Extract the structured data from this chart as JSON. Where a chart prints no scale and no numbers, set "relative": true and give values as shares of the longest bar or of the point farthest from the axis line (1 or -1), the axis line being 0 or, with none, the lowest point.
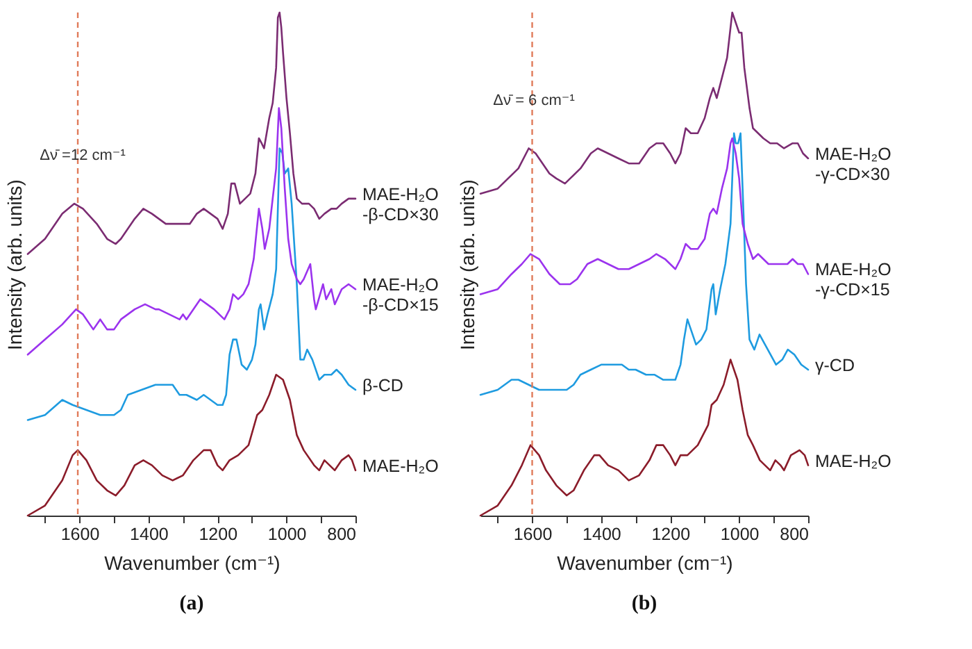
{
  "chart_data": [
    {
      "type": "line",
      "title": "(a)",
      "xlabel": "Wavenumber (cm⁻¹)",
      "ylabel": "Intensity (arb. units)",
      "relative": true,
      "legend": false,
      "grid": false,
      "tick_labels": "x",
      "xlim": [
        1750,
        800
      ],
      "xticks": [
        {
          "value": 1700,
          "label": null
        },
        1600,
        {
          "value": 1500,
          "label": null
        },
        1400,
        {
          "value": 1300,
          "label": null
        },
        1200,
        {
          "value": 1100,
          "label": null
        },
        1000,
        {
          "value": 900,
          "label": null
        },
        800
      ],
      "ref_lines": [
        {
          "axis": "x",
          "value": 1605,
          "color": "#e07b5a",
          "line_style": "dashed"
        }
      ],
      "annotations": [
        {
          "text": "Δν̄ =12 cm⁻¹",
          "x": 1591,
          "y": 0.69
        }
      ],
      "series": [
        {
          "name": "MAE-H₂O",
          "color": "#8b1c2a",
          "x": [
            1750,
            1700,
            1650,
            1620,
            1605,
            1580,
            1550,
            1520,
            1495,
            1470,
            1440,
            1415,
            1390,
            1360,
            1330,
            1300,
            1270,
            1240,
            1220,
            1200,
            1185,
            1165,
            1140,
            1110,
            1085,
            1070,
            1050,
            1030,
            1010,
            990,
            970,
            950,
            920,
            905,
            890,
            875,
            860,
            840,
            820,
            810,
            800
          ],
          "values": [
            0,
            0.02,
            0.07,
            0.12,
            0.13,
            0.11,
            0.07,
            0.05,
            0.04,
            0.06,
            0.1,
            0.11,
            0.1,
            0.08,
            0.07,
            0.08,
            0.11,
            0.13,
            0.13,
            0.1,
            0.09,
            0.11,
            0.12,
            0.14,
            0.2,
            0.21,
            0.24,
            0.28,
            0.27,
            0.23,
            0.16,
            0.13,
            0.1,
            0.09,
            0.11,
            0.1,
            0.09,
            0.11,
            0.12,
            0.11,
            0.09
          ]
        },
        {
          "name": "β-CD",
          "color": "#1e9be0",
          "x": [
            1750,
            1700,
            1650,
            1620,
            1580,
            1540,
            1500,
            1480,
            1460,
            1420,
            1380,
            1350,
            1330,
            1310,
            1290,
            1260,
            1240,
            1220,
            1200,
            1185,
            1175,
            1165,
            1155,
            1145,
            1130,
            1115,
            1100,
            1090,
            1080,
            1075,
            1065,
            1055,
            1040,
            1030,
            1020,
            1012,
            1005,
            995,
            985,
            970,
            960,
            950,
            940,
            925,
            905,
            890,
            870,
            855,
            840,
            820,
            800
          ],
          "values": [
            0.19,
            0.2,
            0.23,
            0.22,
            0.21,
            0.2,
            0.2,
            0.21,
            0.24,
            0.25,
            0.26,
            0.26,
            0.26,
            0.24,
            0.24,
            0.23,
            0.24,
            0.23,
            0.22,
            0.22,
            0.24,
            0.32,
            0.35,
            0.35,
            0.3,
            0.29,
            0.31,
            0.34,
            0.41,
            0.42,
            0.37,
            0.4,
            0.44,
            0.49,
            0.73,
            0.72,
            0.68,
            0.69,
            0.62,
            0.46,
            0.31,
            0.31,
            0.33,
            0.31,
            0.27,
            0.28,
            0.28,
            0.29,
            0.28,
            0.26,
            0.25
          ]
        },
        {
          "name": "MAE-H₂O\n-β-CD×15",
          "color": "#9b33ee",
          "x": [
            1750,
            1700,
            1650,
            1610,
            1590,
            1560,
            1540,
            1520,
            1500,
            1480,
            1460,
            1440,
            1410,
            1380,
            1370,
            1340,
            1310,
            1300,
            1290,
            1270,
            1250,
            1230,
            1210,
            1180,
            1165,
            1155,
            1140,
            1125,
            1110,
            1095,
            1080,
            1070,
            1063,
            1050,
            1040,
            1030,
            1022,
            1015,
            1005,
            995,
            985,
            970,
            960,
            950,
            931,
            920,
            915,
            894,
            885,
            870,
            860,
            840,
            820,
            800
          ],
          "values": [
            0.32,
            0.35,
            0.38,
            0.41,
            0.4,
            0.37,
            0.39,
            0.37,
            0.37,
            0.39,
            0.4,
            0.41,
            0.42,
            0.41,
            0.41,
            0.4,
            0.39,
            0.4,
            0.39,
            0.41,
            0.43,
            0.42,
            0.41,
            0.39,
            0.41,
            0.44,
            0.43,
            0.44,
            0.46,
            0.51,
            0.61,
            0.57,
            0.53,
            0.57,
            0.63,
            0.69,
            0.81,
            0.77,
            0.65,
            0.55,
            0.5,
            0.47,
            0.46,
            0.47,
            0.5,
            0.43,
            0.41,
            0.46,
            0.43,
            0.45,
            0.42,
            0.45,
            0.46,
            0.45
          ]
        },
        {
          "name": "MAE-H₂O\n-β-CD×30",
          "color": "#7b2c72",
          "x": [
            1750,
            1700,
            1650,
            1615,
            1590,
            1550,
            1520,
            1495,
            1480,
            1460,
            1440,
            1415,
            1390,
            1370,
            1350,
            1330,
            1310,
            1295,
            1280,
            1260,
            1240,
            1220,
            1200,
            1185,
            1170,
            1160,
            1150,
            1135,
            1120,
            1105,
            1090,
            1080,
            1072,
            1065,
            1050,
            1040,
            1030,
            1025,
            1020,
            1015,
            1010,
            1000,
            990,
            980,
            970,
            955,
            945,
            935,
            920,
            905,
            890,
            870,
            855,
            840,
            820,
            800
          ],
          "values": [
            0.52,
            0.55,
            0.6,
            0.62,
            0.61,
            0.58,
            0.55,
            0.54,
            0.55,
            0.57,
            0.59,
            0.61,
            0.6,
            0.59,
            0.58,
            0.58,
            0.58,
            0.58,
            0.58,
            0.6,
            0.61,
            0.6,
            0.59,
            0.57,
            0.6,
            0.66,
            0.66,
            0.62,
            0.63,
            0.64,
            0.68,
            0.75,
            0.74,
            0.73,
            0.79,
            0.82,
            0.89,
            0.99,
            1.0,
            0.97,
            0.92,
            0.83,
            0.76,
            0.68,
            0.63,
            0.62,
            0.62,
            0.62,
            0.61,
            0.59,
            0.6,
            0.61,
            0.61,
            0.62,
            0.63,
            0.63
          ]
        }
      ]
    },
    {
      "type": "line",
      "title": "(b)",
      "xlabel": "Wavenumber (cm⁻¹)",
      "ylabel": "Intensity (arb. units)",
      "relative": true,
      "legend": false,
      "grid": false,
      "tick_labels": "x",
      "xlim": [
        1750,
        800
      ],
      "xticks": [
        {
          "value": 1700,
          "label": null
        },
        1600,
        {
          "value": 1500,
          "label": null
        },
        1400,
        {
          "value": 1300,
          "label": null
        },
        1200,
        {
          "value": 1100,
          "label": null
        },
        1000,
        {
          "value": 900,
          "label": null
        },
        800
      ],
      "ref_lines": [
        {
          "axis": "x",
          "value": 1600,
          "color": "#e07b5a",
          "line_style": "dashed"
        }
      ],
      "annotations": [
        {
          "text": "Δν̄ = 6 cm⁻¹",
          "x": 1595,
          "y": 0.8
        }
      ],
      "series": [
        {
          "name": "MAE-H₂O",
          "color": "#8b1c2a",
          "x": [
            1750,
            1700,
            1660,
            1630,
            1605,
            1580,
            1560,
            1530,
            1500,
            1480,
            1450,
            1420,
            1405,
            1380,
            1350,
            1320,
            1290,
            1260,
            1240,
            1220,
            1200,
            1185,
            1170,
            1150,
            1120,
            1090,
            1080,
            1065,
            1045,
            1025,
            1005,
            990,
            975,
            960,
            940,
            910,
            895,
            880,
            870,
            850,
            825,
            810,
            800
          ],
          "values": [
            0,
            0.02,
            0.06,
            0.1,
            0.14,
            0.12,
            0.09,
            0.06,
            0.04,
            0.05,
            0.09,
            0.12,
            0.12,
            0.1,
            0.09,
            0.07,
            0.08,
            0.11,
            0.14,
            0.14,
            0.12,
            0.1,
            0.12,
            0.12,
            0.14,
            0.18,
            0.22,
            0.23,
            0.26,
            0.31,
            0.27,
            0.21,
            0.16,
            0.14,
            0.11,
            0.09,
            0.11,
            0.1,
            0.09,
            0.12,
            0.13,
            0.12,
            0.1
          ]
        },
        {
          "name": "γ-CD",
          "color": "#1e9be0",
          "x": [
            1750,
            1700,
            1660,
            1640,
            1610,
            1580,
            1540,
            1500,
            1480,
            1460,
            1430,
            1400,
            1370,
            1340,
            1320,
            1300,
            1270,
            1245,
            1220,
            1200,
            1185,
            1170,
            1160,
            1150,
            1140,
            1125,
            1110,
            1095,
            1080,
            1075,
            1068,
            1055,
            1040,
            1025,
            1015,
            1010,
            1003,
            996,
            990,
            980,
            970,
            956,
            941,
            925,
            893,
            875,
            859,
            840,
            820,
            800
          ],
          "values": [
            0.24,
            0.25,
            0.27,
            0.27,
            0.26,
            0.25,
            0.25,
            0.25,
            0.26,
            0.28,
            0.29,
            0.3,
            0.3,
            0.3,
            0.29,
            0.29,
            0.28,
            0.28,
            0.27,
            0.27,
            0.27,
            0.3,
            0.35,
            0.39,
            0.37,
            0.34,
            0.35,
            0.37,
            0.45,
            0.46,
            0.4,
            0.45,
            0.5,
            0.58,
            0.76,
            0.74,
            0.74,
            0.76,
            0.65,
            0.46,
            0.35,
            0.33,
            0.36,
            0.34,
            0.3,
            0.31,
            0.33,
            0.32,
            0.3,
            0.29
          ]
        },
        {
          "name": "MAE-H₂O\n-γ-CD×15",
          "color": "#9b33ee",
          "x": [
            1750,
            1700,
            1660,
            1630,
            1605,
            1580,
            1550,
            1520,
            1490,
            1470,
            1440,
            1410,
            1380,
            1350,
            1320,
            1290,
            1260,
            1240,
            1215,
            1200,
            1185,
            1170,
            1155,
            1140,
            1120,
            1100,
            1085,
            1075,
            1065,
            1050,
            1035,
            1025,
            1020,
            1010,
            1000,
            990,
            975,
            960,
            945,
            930,
            915,
            895,
            880,
            860,
            845,
            830,
            815,
            800
          ],
          "values": [
            0.44,
            0.45,
            0.48,
            0.5,
            0.52,
            0.51,
            0.48,
            0.46,
            0.46,
            0.47,
            0.5,
            0.51,
            0.5,
            0.49,
            0.49,
            0.5,
            0.51,
            0.52,
            0.51,
            0.5,
            0.49,
            0.51,
            0.54,
            0.53,
            0.53,
            0.55,
            0.6,
            0.61,
            0.6,
            0.65,
            0.69,
            0.74,
            0.75,
            0.72,
            0.67,
            0.58,
            0.54,
            0.51,
            0.52,
            0.51,
            0.5,
            0.5,
            0.5,
            0.5,
            0.51,
            0.5,
            0.5,
            0.48
          ]
        },
        {
          "name": "MAE-H₂O\n-γ-CD×30",
          "color": "#7b2c72",
          "x": [
            1750,
            1700,
            1670,
            1640,
            1610,
            1590,
            1570,
            1550,
            1530,
            1505,
            1490,
            1460,
            1430,
            1410,
            1380,
            1350,
            1320,
            1290,
            1260,
            1240,
            1220,
            1200,
            1185,
            1170,
            1155,
            1140,
            1120,
            1100,
            1085,
            1075,
            1065,
            1050,
            1035,
            1025,
            1020,
            1010,
            1000,
            993,
            985,
            970,
            960,
            945,
            930,
            910,
            890,
            870,
            845,
            830,
            815,
            800
          ],
          "values": [
            0.64,
            0.65,
            0.67,
            0.69,
            0.73,
            0.72,
            0.7,
            0.68,
            0.67,
            0.66,
            0.67,
            0.69,
            0.72,
            0.73,
            0.72,
            0.71,
            0.7,
            0.7,
            0.73,
            0.74,
            0.74,
            0.72,
            0.7,
            0.72,
            0.77,
            0.76,
            0.76,
            0.79,
            0.83,
            0.85,
            0.83,
            0.87,
            0.91,
            0.97,
            1.0,
            0.98,
            0.96,
            0.96,
            0.89,
            0.81,
            0.77,
            0.76,
            0.75,
            0.74,
            0.74,
            0.73,
            0.74,
            0.74,
            0.72,
            0.71
          ]
        }
      ]
    }
  ]
}
